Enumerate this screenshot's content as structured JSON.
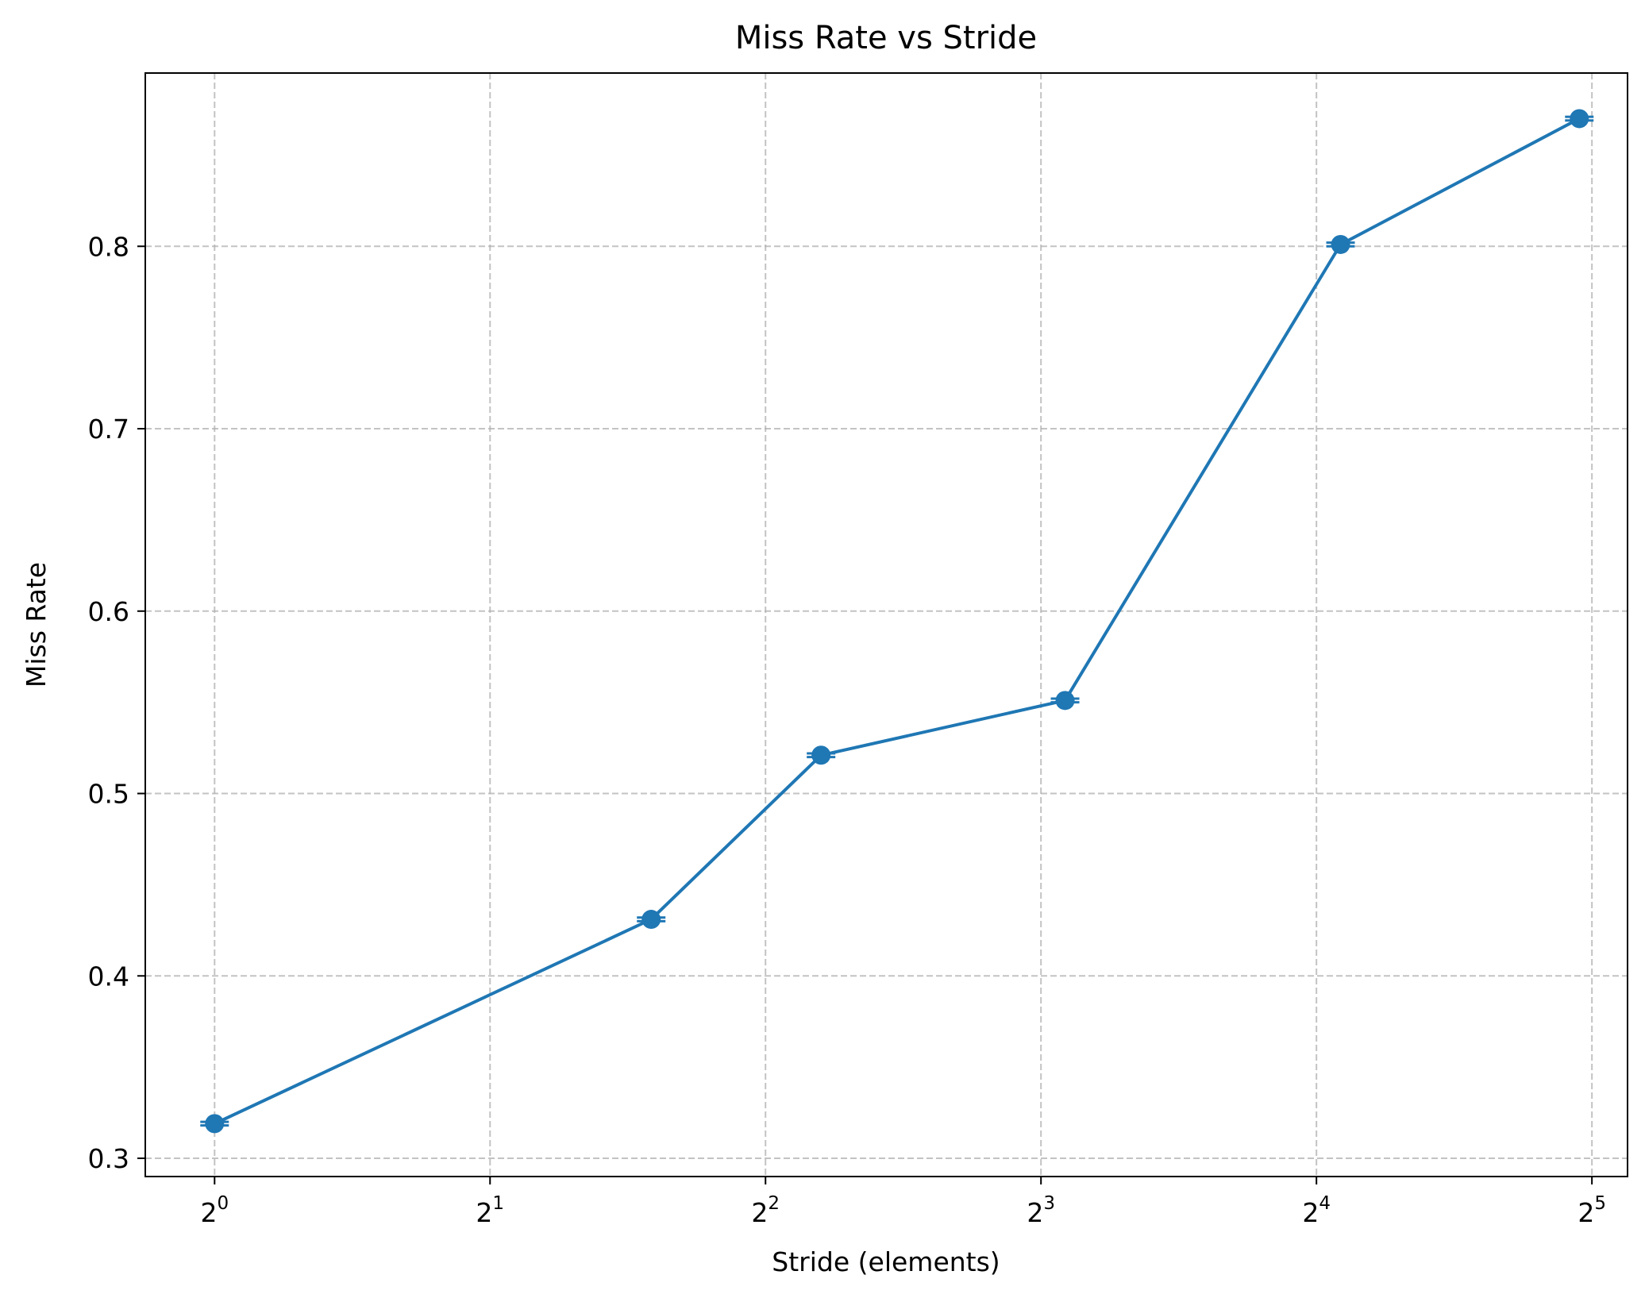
{
  "chart_data": {
    "type": "line",
    "title": "Miss Rate vs Stride",
    "xlabel": "Stride (elements)",
    "ylabel": "Miss Rate",
    "x_scale": "log2",
    "xlim": [
      0.84,
      35.0
    ],
    "ylim": [
      0.29,
      0.895
    ],
    "x_ticks": [
      {
        "value": 1,
        "base": "2",
        "exp": "0"
      },
      {
        "value": 2,
        "base": "2",
        "exp": "1"
      },
      {
        "value": 4,
        "base": "2",
        "exp": "2"
      },
      {
        "value": 8,
        "base": "2",
        "exp": "3"
      },
      {
        "value": 16,
        "base": "2",
        "exp": "4"
      },
      {
        "value": 32,
        "base": "2",
        "exp": "5"
      }
    ],
    "y_ticks": [
      {
        "value": 0.3,
        "label": "0.3"
      },
      {
        "value": 0.4,
        "label": "0.4"
      },
      {
        "value": 0.5,
        "label": "0.5"
      },
      {
        "value": 0.6,
        "label": "0.6"
      },
      {
        "value": 0.7,
        "label": "0.7"
      },
      {
        "value": 0.8,
        "label": "0.8"
      }
    ],
    "grid": true,
    "series": [
      {
        "color": "#1f77b4",
        "x": [
          1,
          3,
          4.6,
          8.5,
          17,
          31
        ],
        "y": [
          0.319,
          0.431,
          0.521,
          0.551,
          0.801,
          0.87
        ],
        "error": [
          0.001,
          0.001,
          0.001,
          0.001,
          0.001,
          0.001
        ]
      }
    ]
  }
}
